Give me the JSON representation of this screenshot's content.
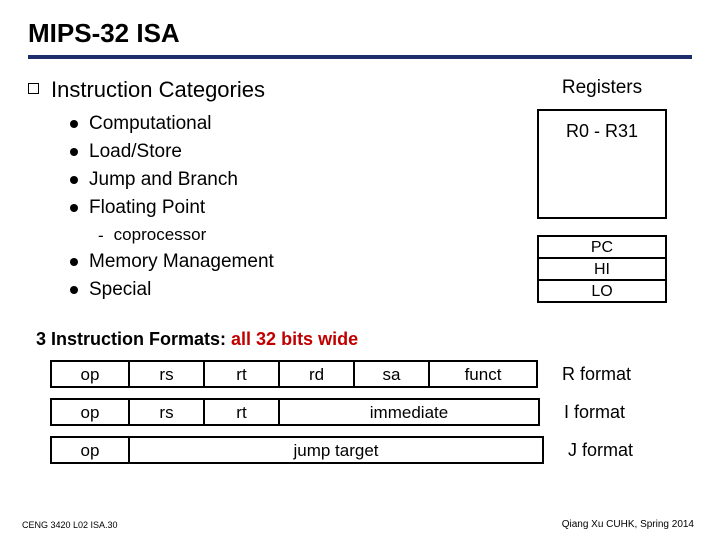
{
  "title": "MIPS-32 ISA",
  "title_underline_width": 4,
  "heading": "Instruction Categories",
  "categories_a": [
    "Computational",
    "Load/Store",
    "Jump and Branch",
    "Floating Point"
  ],
  "sub_item": "coprocessor",
  "categories_b": [
    "Memory Management",
    "Special"
  ],
  "registers": {
    "title": "Registers",
    "main_box": "R0 - R31",
    "small_boxes": [
      "PC",
      "HI",
      "LO"
    ]
  },
  "formats_label_prefix": "3 Instruction Formats: ",
  "formats_label_red": "all 32 bits wide",
  "formats": {
    "r": {
      "cells": [
        "op",
        "rs",
        "rt",
        "rd",
        "sa",
        "funct"
      ],
      "name": "R format"
    },
    "i": {
      "cells": [
        "op",
        "rs",
        "rt",
        "immediate"
      ],
      "name": "I format"
    },
    "j": {
      "cells": [
        "op",
        "jump target"
      ],
      "name": "J format"
    }
  },
  "footer_left": "CENG 3420 L02 ISA.30",
  "footer_right": "Qiang Xu   CUHK, Spring 2014",
  "colors": {
    "underline": "#1f2d6b",
    "red": "#c00000",
    "text": "#000000",
    "background": "#ffffff"
  }
}
